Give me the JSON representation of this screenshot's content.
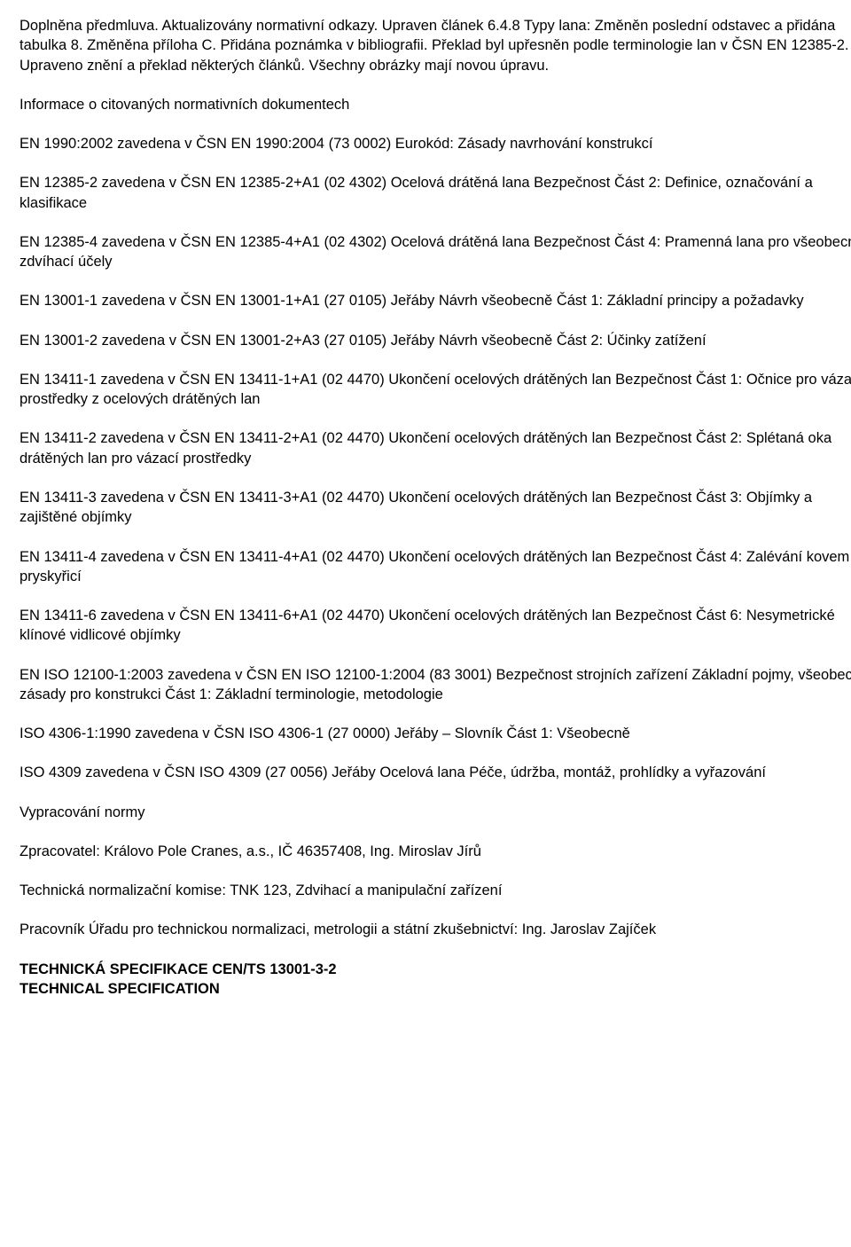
{
  "intro": "Doplněna předmluva. Aktualizovány normativní odkazy. Upraven článek 6.4.8 Typy lana: Změněn poslední odstavec a přidána tabulka 8. Změněna příloha C. Přidána poznámka v bibliografii. Překlad byl upřesněn podle terminologie lan v ČSN EN 12385-2. Upraveno znění a překlad některých článků. Všechny obrázky mají novou úpravu.",
  "info_heading": "Informace o citovaných normativních dokumentech",
  "refs": [
    "EN 1990:2002 zavedena v ČSN EN 1990:2004 (73 0002) Eurokód: Zásady navrhování konstrukcí",
    "EN 12385-2 zavedena v ČSN EN 12385-2+A1 (02 4302) Ocelová drátěná lana Bezpečnost Část 2: Definice, označování a klasifikace",
    "EN 12385-4 zavedena v ČSN EN 12385-4+A1 (02 4302) Ocelová drátěná lana Bezpečnost Část 4: Pramenná lana pro všeobecné zdvíhací účely",
    "EN 13001-1 zavedena v ČSN EN 13001-1+A1 (27 0105) Jeřáby Návrh všeobecně Část 1: Základní principy a požadavky",
    "EN 13001-2 zavedena v ČSN EN 13001-2+A3 (27 0105) Jeřáby Návrh všeobecně Část 2: Účinky zatížení",
    "EN 13411-1 zavedena v ČSN EN 13411-1+A1 (02 4470) Ukončení ocelových drátěných lan Bezpečnost Část 1: Očnice pro vázací prostředky z ocelových drátěných lan",
    "EN 13411-2 zavedena v ČSN EN 13411-2+A1 (02 4470) Ukončení ocelových drátěných lan Bezpečnost Část 2: Splétaná oka drátěných lan pro vázací prostředky",
    "EN 13411-3 zavedena v ČSN EN 13411-3+A1 (02 4470) Ukončení ocelových drátěných lan Bezpečnost Část 3: Objímky a zajištěné objímky",
    "EN 13411-4 zavedena v ČSN EN 13411-4+A1 (02 4470) Ukončení ocelových drátěných lan Bezpečnost Část 4: Zalévání kovem a pryskyřicí",
    "EN 13411-6 zavedena v ČSN EN 13411-6+A1 (02 4470) Ukončení ocelových drátěných lan Bezpečnost Část 6: Nesymetrické klínové vidlicové objímky",
    "EN ISO 12100-1:2003 zavedena v ČSN EN ISO 12100-1:2004 (83 3001) Bezpečnost strojních zařízení Základní pojmy, všeobecné zásady pro konstrukci Část 1: Základní terminologie, metodologie",
    "ISO 4306-1:1990 zavedena v ČSN ISO 4306-1 (27 0000) Jeřáby – Slovník Část 1: Všeobecně",
    "ISO 4309 zavedena v ČSN ISO 4309 (27 0056) Jeřáby Ocelová lana Péče, údržba, montáž, prohlídky a vyřazování"
  ],
  "vypracovani": "Vypracování normy",
  "zpracovatel": "Zpracovatel: Královo Pole Cranes, a.s., IČ 46357408, Ing. Miroslav Jírů",
  "tnk": "Technická normalizační komise: TNK 123, Zdvihací a manipulační zařízení",
  "pracovnik": "Pracovník Úřadu pro technickou normalizaci, metrologii a státní zkušebnictví: Ing. Jaroslav Zajíček",
  "footer_line1": "TECHNICKÁ SPECIFIKACE CEN/TS 13001-3-2",
  "footer_line2": "TECHNICAL SPECIFICATION"
}
